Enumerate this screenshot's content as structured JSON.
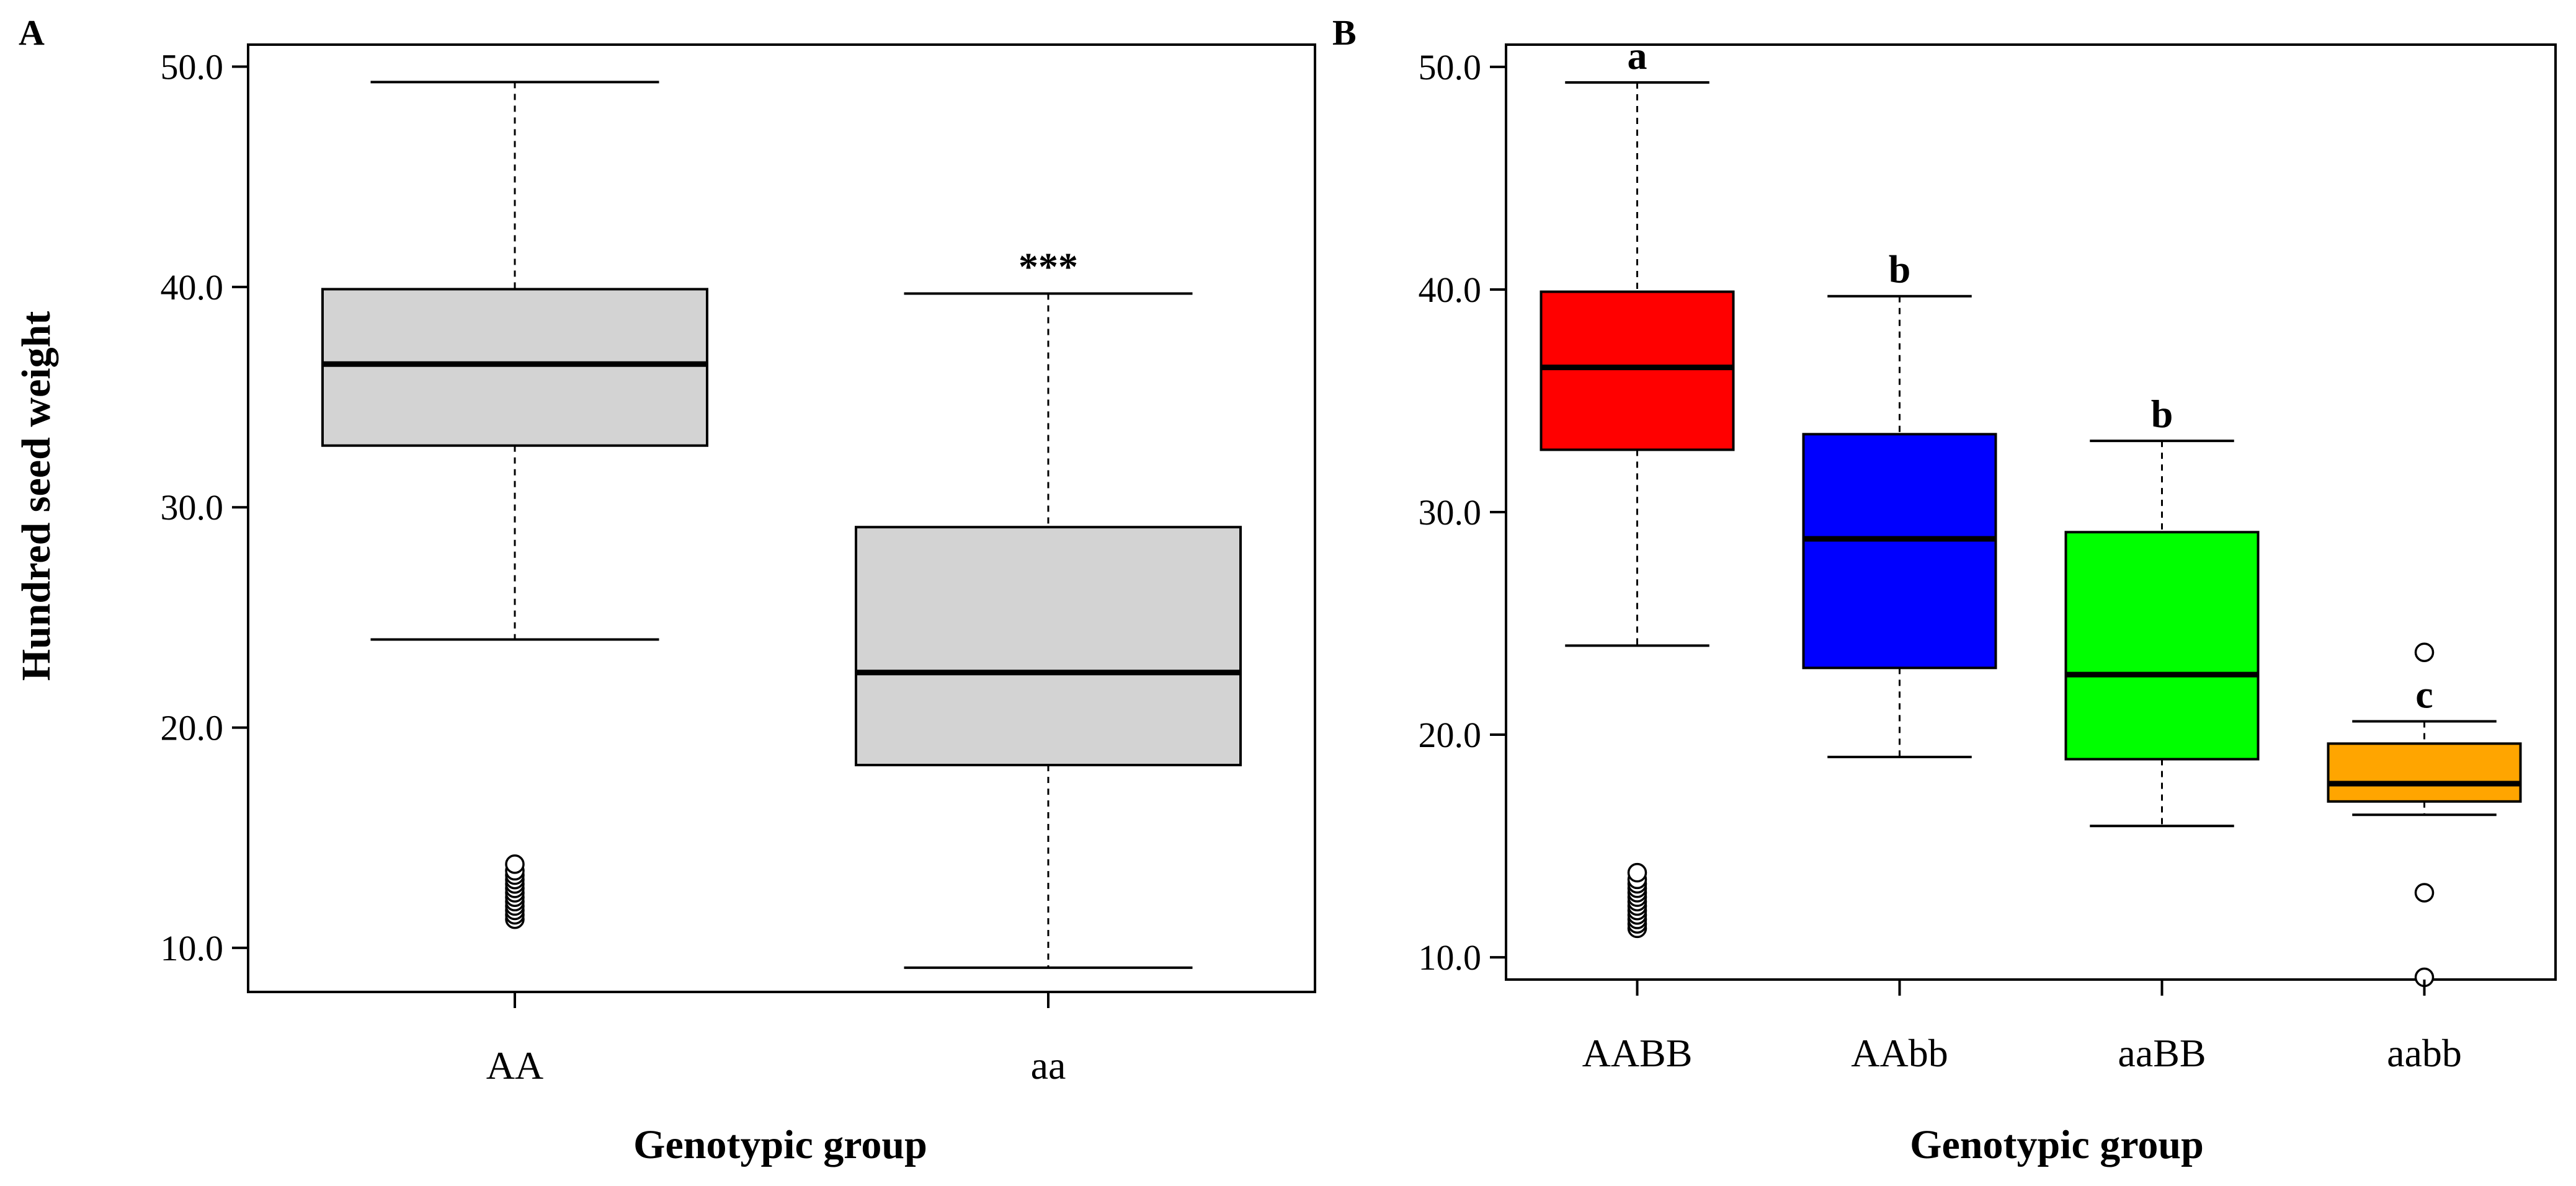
{
  "figure": {
    "ylabel_shared": "Hundred seed weight"
  },
  "chart_data": [
    {
      "type": "box",
      "panel_letter": "A",
      "xlabel": "Genotypic group",
      "ylabel": "Hundred seed weight",
      "ylim": [
        8.0,
        51.0
      ],
      "yticks": [
        10.0,
        20.0,
        30.0,
        40.0,
        50.0
      ],
      "ytick_labels": [
        "10.0",
        "20.0",
        "30.0",
        "40.0",
        "50.0"
      ],
      "groups": [
        {
          "name": "AA",
          "whisker_low": 24.0,
          "q1": 32.8,
          "median": 36.5,
          "q3": 39.9,
          "whisker_high": 49.3,
          "outliers": [
            11.3,
            11.5,
            11.7,
            11.9,
            12.1,
            12.3,
            12.5,
            12.7,
            12.9,
            13.1,
            13.3,
            13.5,
            13.8
          ],
          "fill": "#d3d3d3",
          "annotation": ""
        },
        {
          "name": "aa",
          "whisker_low": 9.1,
          "q1": 18.3,
          "median": 22.5,
          "q3": 29.1,
          "whisker_high": 39.7,
          "outliers": [],
          "fill": "#d3d3d3",
          "annotation": "***"
        }
      ]
    },
    {
      "type": "box",
      "panel_letter": "B",
      "xlabel": "Genotypic group",
      "ylabel": "",
      "ylim": [
        9.0,
        51.0
      ],
      "yticks": [
        10.0,
        20.0,
        30.0,
        40.0,
        50.0
      ],
      "ytick_labels": [
        "10.0",
        "20.0",
        "30.0",
        "40.0",
        "50.0"
      ],
      "groups": [
        {
          "name": "AABB",
          "whisker_low": 24.0,
          "q1": 32.8,
          "median": 36.5,
          "q3": 39.9,
          "whisker_high": 49.3,
          "outliers": [
            11.3,
            11.5,
            11.7,
            11.9,
            12.1,
            12.3,
            12.5,
            12.7,
            12.9,
            13.1,
            13.3,
            13.5,
            13.8
          ],
          "fill": "#ff0000",
          "annotation": "a"
        },
        {
          "name": "AAbb",
          "whisker_low": 19.0,
          "q1": 23.0,
          "median": 28.8,
          "q3": 33.5,
          "whisker_high": 39.7,
          "outliers": [],
          "fill": "#0000ff",
          "annotation": "b"
        },
        {
          "name": "aaBB",
          "whisker_low": 15.9,
          "q1": 18.9,
          "median": 22.7,
          "q3": 29.1,
          "whisker_high": 33.2,
          "outliers": [],
          "fill": "#00ff00",
          "annotation": "b"
        },
        {
          "name": "aabb",
          "whisker_low": 16.4,
          "q1": 17.0,
          "median": 17.8,
          "q3": 19.6,
          "whisker_high": 20.6,
          "outliers": [
            23.7,
            12.9,
            9.1
          ],
          "fill": "#ffa500",
          "annotation": "c"
        }
      ]
    }
  ]
}
